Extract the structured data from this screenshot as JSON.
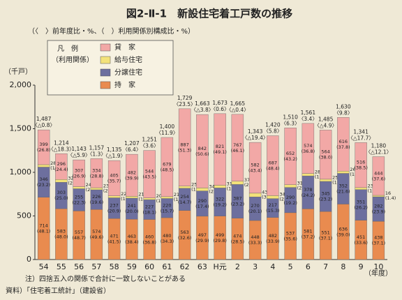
{
  "chart_data": {
    "type": "stacked_bar",
    "title": "図2-Ⅱ-1　新設住宅着工戸数の推移",
    "subtitle": "（〈　〉前年度比・%、（　）利用関係別構成比・%）",
    "y_label": "（千戸）",
    "x_label": "（年度）",
    "legend_title": "凡　例",
    "legend_subtitle": "（利用関係）",
    "categories": [
      "54",
      "55",
      "56",
      "57",
      "58",
      "59",
      "60",
      "61",
      "62",
      "63",
      "H元",
      "2",
      "3",
      "4",
      "5",
      "6",
      "7",
      "8",
      "9",
      "10"
    ],
    "series": [
      {
        "name": "持　家",
        "color": "#e98b4f",
        "values": [
          714,
          583,
          557,
          574,
          471,
          463,
          460,
          480,
          563,
          497,
          499,
          474,
          448,
          482,
          537,
          581,
          551,
          636,
          451,
          438
        ],
        "share_labels": [
          "(48.1)",
          "(48.0)",
          "(48.7)",
          "(49.6)",
          "(41.5)",
          "(38.4)",
          "(36.8)",
          "(34.3)",
          "(32.6)",
          "(29.9)",
          "(29.8)",
          "(28.5)",
          "(33.3)",
          "(33.9)",
          "(35.6)",
          "(37.2)",
          "(37.1)",
          "(39.0)",
          "(33.6)",
          "(37.1)"
        ]
      },
      {
        "name": "分譲住宅",
        "color": "#6d6f9e",
        "values": [
          346,
          303,
          255,
          226,
          237,
          241,
          227,
          220,
          254,
          290,
          322,
          387,
          270,
          217,
          290,
          378,
          345,
          352,
          351,
          282
        ],
        "share_labels": [
          "(23.2)",
          "(25.0)",
          "(22.3)",
          "(19.6)",
          "(20.9)",
          "(20.0)",
          "(18.1)",
          "(15.7)",
          "(14.7)",
          "(17.4)",
          "(19.2)",
          "(23.2)",
          "(20.1)",
          "(15.3)",
          "(19.2)",
          "(24.2)",
          "(23.2)",
          "(21.6)",
          "(26.2)",
          "(23.9)"
        ]
      },
      {
        "name": "給与住宅",
        "color": "#f3e27a",
        "values": [
          28,
          32,
          24,
          23,
          22,
          21,
          20,
          21,
          25,
          34,
          31,
          37,
          43,
          34,
          31,
          28,
          25,
          26,
          23,
          16
        ],
        "share_labels": [
          "(1.9)",
          "(2.6)",
          "(2.1)",
          "(2.0)",
          "(1.9)",
          "(1.7)",
          "(1.6)",
          "(1.5)",
          "(1.5)",
          "(2.0)",
          "(1.9)",
          "(2.2)",
          "(3.2)",
          "(2.4)",
          "(2.1)",
          "(1.8)",
          "(1.7)",
          "(1.6)",
          "(1.7)",
          "(1.4)"
        ]
      },
      {
        "name": "貸　家",
        "color": "#f2a8a6",
        "values": [
          399,
          296,
          307,
          334,
          405,
          482,
          544,
          679,
          887,
          842,
          821,
          767,
          582,
          687,
          652,
          574,
          564,
          616,
          516,
          444
        ],
        "share_labels": [
          "(26.8)",
          "(24.4)",
          "(26.9)",
          "(28.8)",
          "(35.7)",
          "(39.9)",
          "(43.5)",
          "(48.5)",
          "(51.3)",
          "(50.6)",
          "(49.1)",
          "(46.1)",
          "(43.4)",
          "(48.4)",
          "(43.2)",
          "(36.8)",
          "(38.0)",
          "(37.8)",
          "(38.5)",
          "(37.6)"
        ]
      }
    ],
    "totals": {
      "values": [
        1487,
        1214,
        1143,
        1157,
        1135,
        1207,
        1251,
        1400,
        1729,
        1663,
        1673,
        1665,
        1343,
        1420,
        1510,
        1561,
        1485,
        1630,
        1341,
        1180
      ],
      "value_labels": [
        "1,487",
        "1,214",
        "1,143",
        "1,157",
        "1,135",
        "1,207",
        "1,251",
        "1,400",
        "1,729",
        "1,663",
        "1,673",
        "1,665",
        "1,343",
        "1,420",
        "1,510",
        "1,561",
        "1,485",
        "1,630",
        "1,341",
        "1,180"
      ],
      "change_labels": [
        "〈△0.8〉",
        "〈△18.3〉",
        "〈△5.9〉",
        "〈1.3〉",
        "〈△1.9〉",
        "〈6.4〉",
        "〈3.6〉",
        "〈11.9〉",
        "〈23.5〉",
        "〈△3.8〉",
        "〈0.6〉",
        "〈△0.4〉",
        "〈△19.4〉",
        "〈5.8〉",
        "〈6.3〉",
        "〈3.4〉",
        "〈△4.9〉",
        "〈9.8〉",
        "〈△17.7〉",
        "〈△12.1〉"
      ]
    },
    "ylim": [
      0,
      2000
    ],
    "yticks": [
      0,
      500,
      {
        "value": 1000,
        "label": "1,000"
      },
      {
        "value": 1500,
        "label": "1,500"
      },
      {
        "value": 2000,
        "label": "2,000"
      }
    ],
    "notes": [
      "注）四捨五入の関係で合計に一致しないことがある",
      "資料）「住宅着工統計」（建設省）"
    ]
  }
}
